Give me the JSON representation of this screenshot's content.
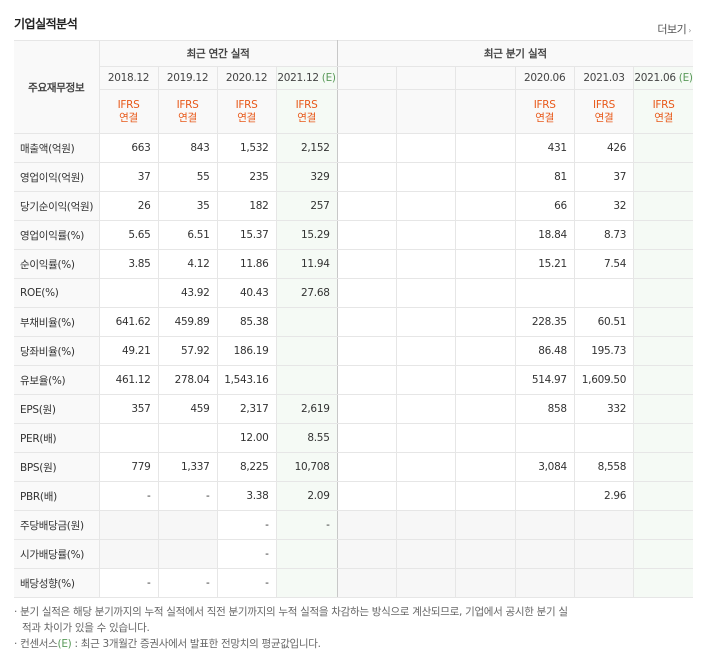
{
  "header": {
    "title": "기업실적분석",
    "more": "더보기"
  },
  "table": {
    "corner": "주요재무정보",
    "groups": [
      "최근 연간 실적",
      "최근 분기 실적"
    ],
    "columns": [
      {
        "period": "2018.12",
        "standard": "IFRS",
        "scope": "연결"
      },
      {
        "period": "2019.12",
        "standard": "IFRS",
        "scope": "연결"
      },
      {
        "period": "2020.12",
        "standard": "IFRS",
        "scope": "연결"
      },
      {
        "period": "2021.12",
        "estimate": "(E)",
        "standard": "IFRS",
        "scope": "연결"
      },
      null,
      null,
      null,
      {
        "period": "2020.06",
        "standard": "IFRS",
        "scope": "연결"
      },
      {
        "period": "2021.03",
        "standard": "IFRS",
        "scope": "연결"
      },
      {
        "period": "2021.06",
        "estimate": "(E)",
        "standard": "IFRS",
        "scope": "연결"
      }
    ],
    "rows": [
      {
        "label": "매출액(억원)",
        "values": [
          "663",
          "843",
          "1,532",
          "2,152",
          null,
          null,
          null,
          "431",
          "426",
          null
        ]
      },
      {
        "label": "영업이익(억원)",
        "values": [
          "37",
          "55",
          "235",
          "329",
          null,
          null,
          null,
          "81",
          "37",
          null
        ]
      },
      {
        "label": "당기순이익(억원)",
        "values": [
          "26",
          "35",
          "182",
          "257",
          null,
          null,
          null,
          "66",
          "32",
          null
        ]
      },
      {
        "label": "영업이익률(%)",
        "values": [
          "5.65",
          "6.51",
          "15.37",
          "15.29",
          null,
          null,
          null,
          "18.84",
          "8.73",
          null
        ]
      },
      {
        "label": "순이익률(%)",
        "values": [
          "3.85",
          "4.12",
          "11.86",
          "11.94",
          null,
          null,
          null,
          "15.21",
          "7.54",
          null
        ]
      },
      {
        "label": "ROE(%)",
        "values": [
          null,
          "43.92",
          "40.43",
          "27.68",
          null,
          null,
          null,
          null,
          null,
          null
        ]
      },
      {
        "label": "부채비율(%)",
        "values": [
          "641.62",
          "459.89",
          "85.38",
          null,
          null,
          null,
          null,
          "228.35",
          "60.51",
          null
        ]
      },
      {
        "label": "당좌비율(%)",
        "values": [
          "49.21",
          "57.92",
          "186.19",
          null,
          null,
          null,
          null,
          "86.48",
          "195.73",
          null
        ]
      },
      {
        "label": "유보율(%)",
        "values": [
          "461.12",
          "278.04",
          "1,543.16",
          null,
          null,
          null,
          null,
          "514.97",
          "1,609.50",
          null
        ]
      },
      {
        "label": "EPS(원)",
        "values": [
          "357",
          "459",
          "2,317",
          "2,619",
          null,
          null,
          null,
          "858",
          "332",
          null
        ]
      },
      {
        "label": "PER(배)",
        "values": [
          null,
          null,
          "12.00",
          "8.55",
          null,
          null,
          null,
          null,
          null,
          null
        ]
      },
      {
        "label": "BPS(원)",
        "values": [
          "779",
          "1,337",
          "8,225",
          "10,708",
          null,
          null,
          null,
          "3,084",
          "8,558",
          null
        ]
      },
      {
        "label": "PBR(배)",
        "values": [
          "-",
          "-",
          "3.38",
          "2.09",
          null,
          null,
          null,
          null,
          "2.96",
          null
        ]
      },
      {
        "label": "주당배당금(원)",
        "values": [
          null,
          null,
          "-",
          "-",
          null,
          null,
          null,
          null,
          null,
          null
        ]
      },
      {
        "label": "시가배당률(%)",
        "values": [
          null,
          null,
          "-",
          null,
          null,
          null,
          null,
          null,
          null,
          null
        ]
      },
      {
        "label": "배당성향(%)",
        "values": [
          "-",
          "-",
          "-",
          null,
          null,
          null,
          null,
          null,
          null,
          null
        ]
      }
    ]
  },
  "notes": {
    "quarterly": "분기 실적은 해당 분기까지의 누적 실적에서 직전 분기까지의 누적 실적을 차감하는 방식으로 계산되므로, 기업에서 공시한 분기 실적과 차이가 있을 수 있습니다.",
    "consensus": {
      "term": "컨센서스",
      "mark": "(E)",
      "text": " : 최근 3개월간 증권사에서 발표한 전망치의 평균값입니다."
    }
  }
}
